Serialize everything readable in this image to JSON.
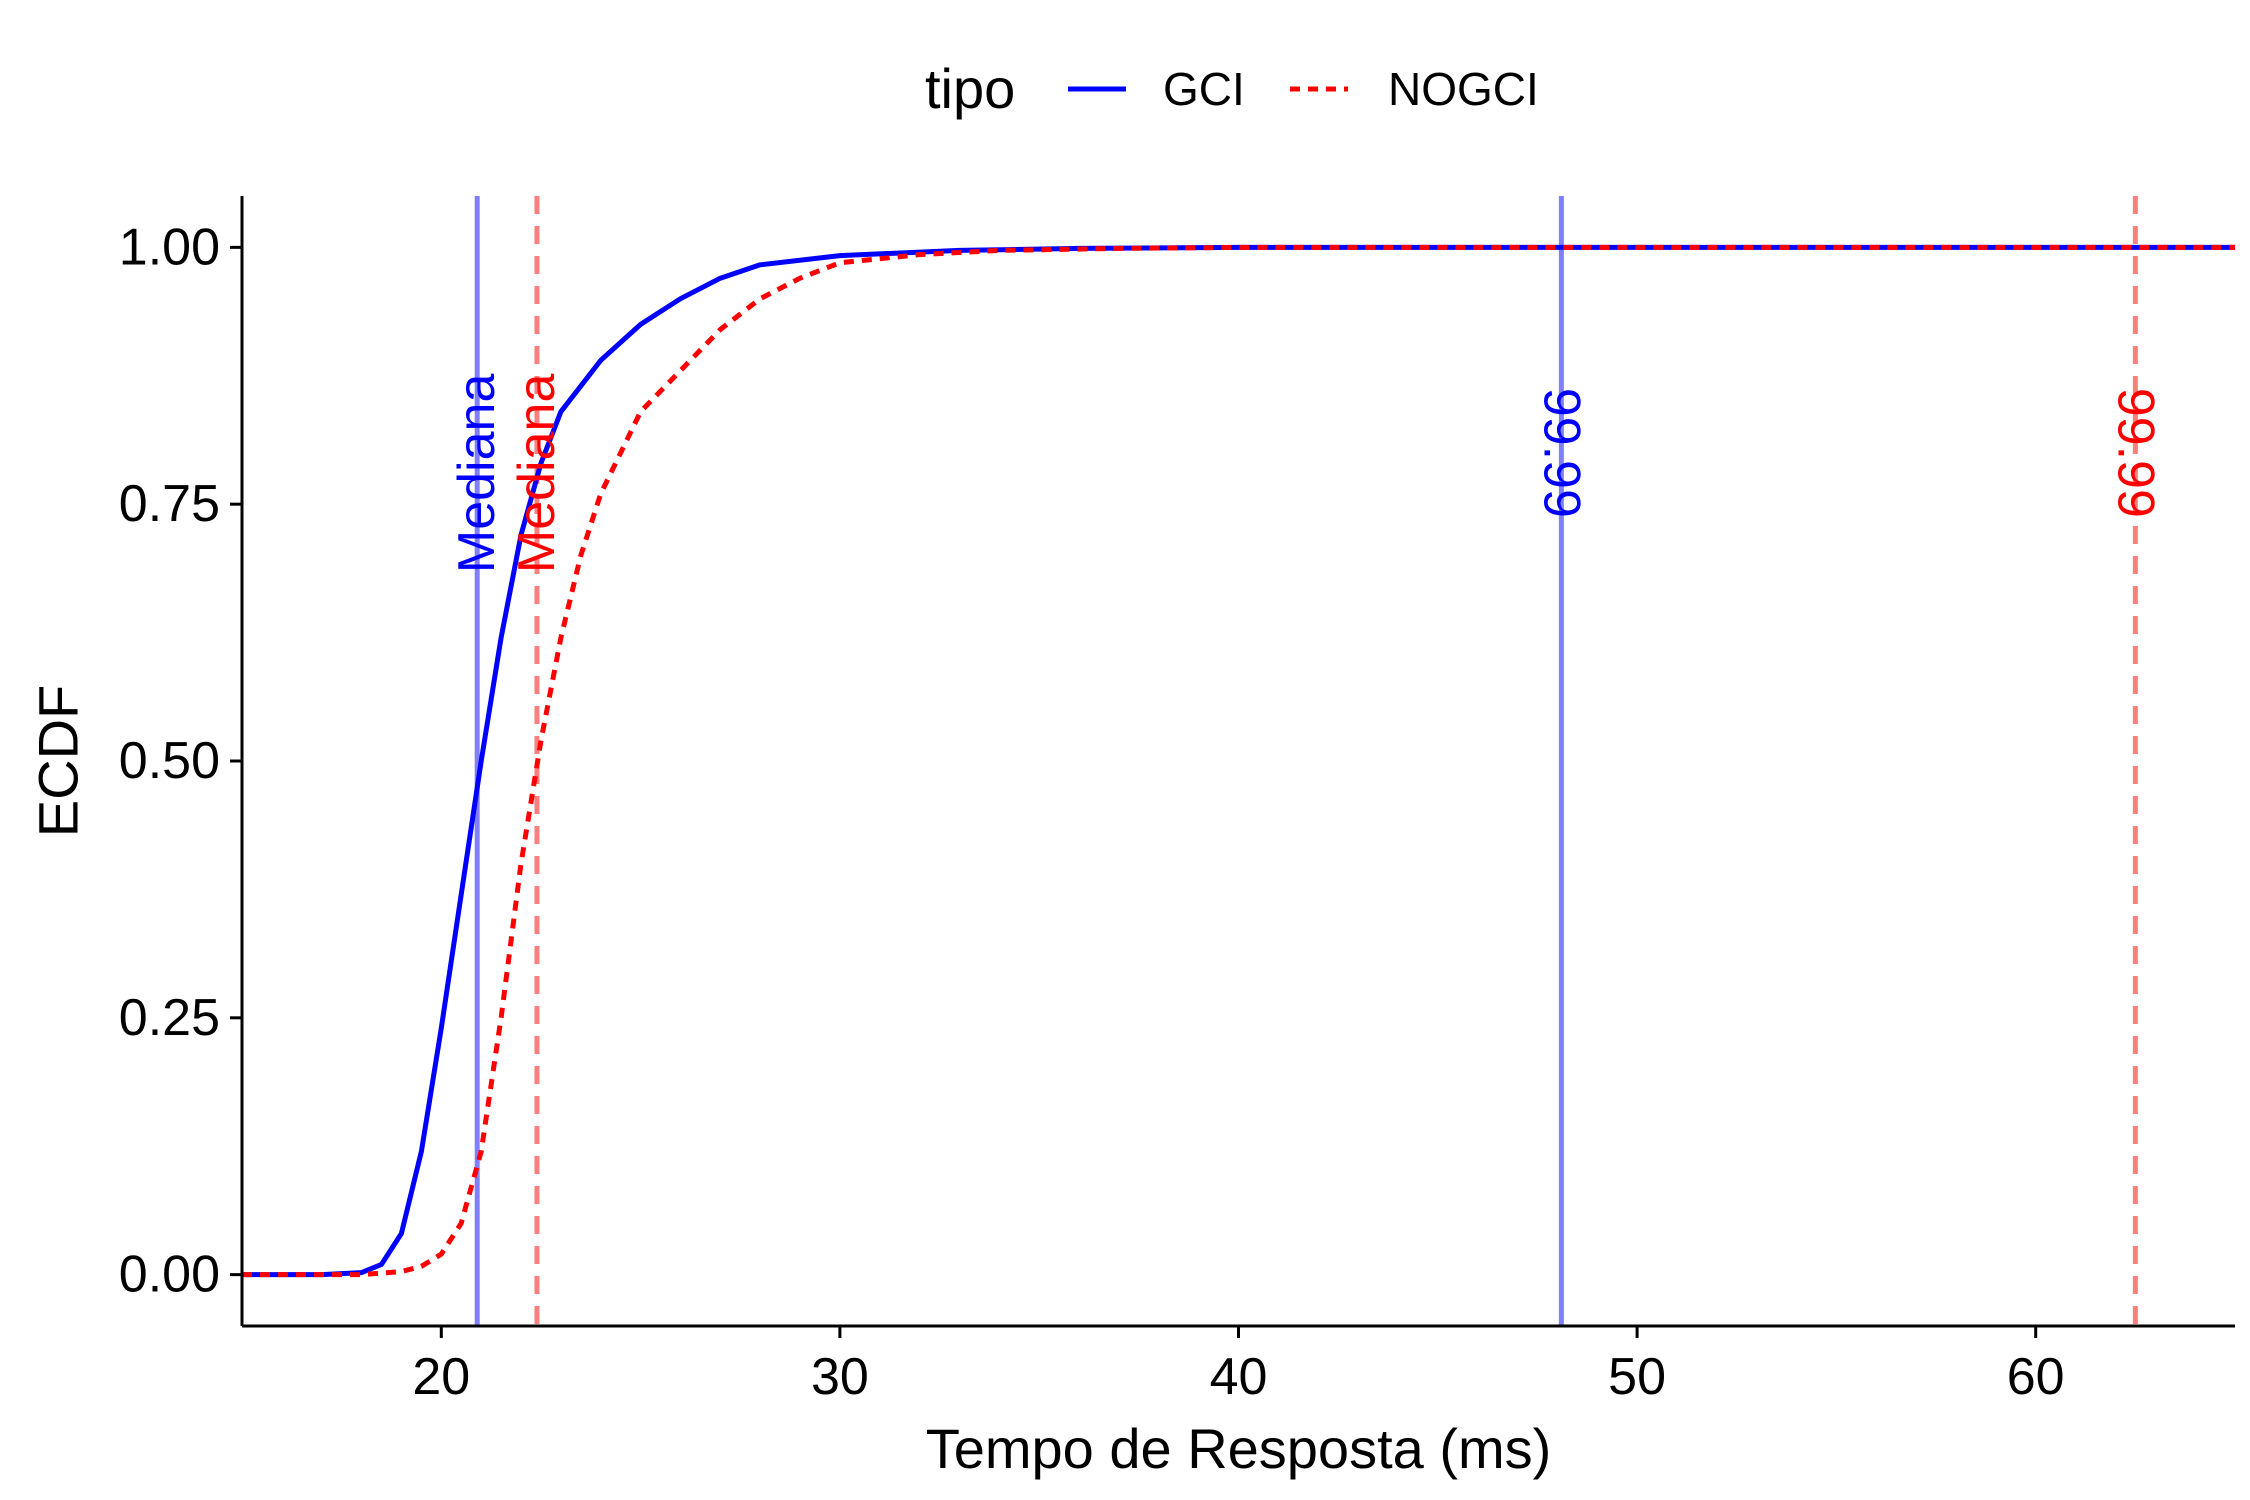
{
  "chart_data": {
    "type": "line",
    "xlabel": "Tempo de Resposta (ms)",
    "ylabel": "ECDF",
    "xlim": [
      15,
      65
    ],
    "ylim": [
      -0.05,
      1.05
    ],
    "x_ticks": [
      20,
      30,
      40,
      50,
      60
    ],
    "y_ticks": [
      0,
      0.25,
      0.5,
      0.75,
      1
    ],
    "y_tick_labels": [
      "0.00",
      "0.25",
      "0.50",
      "0.75",
      "1.00"
    ],
    "grid": false,
    "legend": {
      "title": "tipo",
      "position": "top"
    },
    "series": [
      {
        "name": "GCI",
        "color": "#0000FF",
        "line_style": "solid",
        "x": [
          15,
          17,
          18,
          18.5,
          19,
          19.5,
          20,
          20.5,
          21,
          21.5,
          22,
          22.5,
          23,
          24,
          25,
          26,
          27,
          28,
          30,
          33,
          36,
          40,
          50,
          65
        ],
        "y": [
          0,
          0,
          0.002,
          0.01,
          0.04,
          0.12,
          0.24,
          0.37,
          0.5,
          0.62,
          0.72,
          0.79,
          0.84,
          0.89,
          0.925,
          0.95,
          0.97,
          0.983,
          0.992,
          0.997,
          0.999,
          1,
          1,
          1
        ]
      },
      {
        "name": "NOGCI",
        "color": "#FF0000",
        "line_style": "dashed",
        "x": [
          15,
          18,
          19,
          19.5,
          20,
          20.5,
          21,
          21.5,
          22,
          22.5,
          23,
          23.5,
          24,
          25,
          26,
          27,
          28,
          29,
          30,
          32,
          34,
          37,
          40,
          50,
          65
        ],
        "y": [
          0,
          0,
          0.003,
          0.008,
          0.02,
          0.05,
          0.12,
          0.25,
          0.4,
          0.52,
          0.62,
          0.7,
          0.76,
          0.84,
          0.88,
          0.92,
          0.95,
          0.97,
          0.985,
          0.993,
          0.997,
          0.999,
          1,
          1,
          1
        ]
      }
    ],
    "vlines": [
      {
        "x": 20.9,
        "label": "Mediana",
        "color": "#0000FF",
        "line_style": "solid",
        "label_y": 0.78
      },
      {
        "x": 22.4,
        "label": "Mediana",
        "color": "#FF0000",
        "line_style": "dashed",
        "label_y": 0.78
      },
      {
        "x": 48.1,
        "label": "99.99",
        "color": "#0000FF",
        "line_style": "solid",
        "label_y": 0.8
      },
      {
        "x": 62.5,
        "label": "99.99",
        "color": "#FF0000",
        "line_style": "dashed",
        "label_y": 0.8
      }
    ]
  }
}
